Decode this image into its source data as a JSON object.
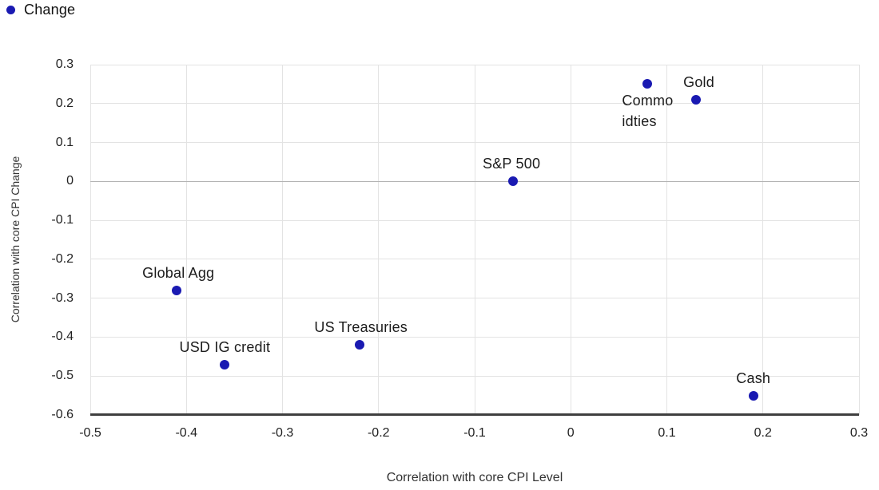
{
  "legend": {
    "items": [
      {
        "label": "Change",
        "marker": "dot",
        "color": "#1a1ab2"
      }
    ]
  },
  "chart_data": {
    "type": "scatter",
    "title": "",
    "xlabel": "Correlation with core CPI Level",
    "ylabel": "Correlation with core CPI Change",
    "xlim": [
      -0.5,
      0.3
    ],
    "ylim": [
      -0.6,
      0.3
    ],
    "grid": true,
    "legend_position": "top-left",
    "x_ticks": [
      {
        "v": -0.5,
        "label": "-0.5"
      },
      {
        "v": -0.4,
        "label": "-0.4"
      },
      {
        "v": -0.3,
        "label": "-0.3"
      },
      {
        "v": -0.2,
        "label": "-0.2"
      },
      {
        "v": -0.1,
        "label": "-0.1"
      },
      {
        "v": 0,
        "label": "0"
      },
      {
        "v": 0.1,
        "label": "0.1"
      },
      {
        "v": 0.2,
        "label": "0.2"
      },
      {
        "v": 0.3,
        "label": "0.3"
      }
    ],
    "y_ticks": [
      {
        "v": 0.3,
        "label": "0.3"
      },
      {
        "v": 0.2,
        "label": "0.2"
      },
      {
        "v": 0.1,
        "label": "0.1"
      },
      {
        "v": 0,
        "label": "0"
      },
      {
        "v": -0.1,
        "label": "-0.1"
      },
      {
        "v": -0.2,
        "label": "-0.2"
      },
      {
        "v": -0.3,
        "label": "-0.3"
      },
      {
        "v": -0.4,
        "label": "-0.4"
      },
      {
        "v": -0.5,
        "label": "-0.5"
      },
      {
        "v": -0.6,
        "label": "-0.6"
      }
    ],
    "series": [
      {
        "name": "Change",
        "color": "#1a1ab2",
        "points": [
          {
            "label": "Global Agg",
            "x": -0.41,
            "y": -0.28,
            "placement": "above",
            "dx": 2,
            "dy": -9
          },
          {
            "label": "USD IG credit",
            "x": -0.36,
            "y": -0.47,
            "placement": "above",
            "dx": 0,
            "dy": -9
          },
          {
            "label": "US Treasuries",
            "x": -0.22,
            "y": -0.42,
            "placement": "above",
            "dx": 2,
            "dy": -9
          },
          {
            "label": "S&P 500",
            "x": -0.06,
            "y": 0.0,
            "placement": "above",
            "dx": -2,
            "dy": -9
          },
          {
            "label": "Commodities",
            "x": 0.08,
            "y": 0.25,
            "placement": "below",
            "dx": 0,
            "dy": 8,
            "label_lines": [
              "Commo",
              "idties"
            ]
          },
          {
            "label": "Gold",
            "x": 0.13,
            "y": 0.21,
            "placement": "above",
            "dx": 4,
            "dy": -9
          },
          {
            "label": "Cash",
            "x": 0.19,
            "y": -0.55,
            "placement": "above",
            "dx": 0,
            "dy": -9
          }
        ]
      }
    ]
  },
  "colors": {
    "point": "#1a1ab2",
    "grid": "#e3e3e3",
    "zero_line": "#b3b3b3",
    "axis_line": "#3f3f3f",
    "background": "#ffffff"
  }
}
